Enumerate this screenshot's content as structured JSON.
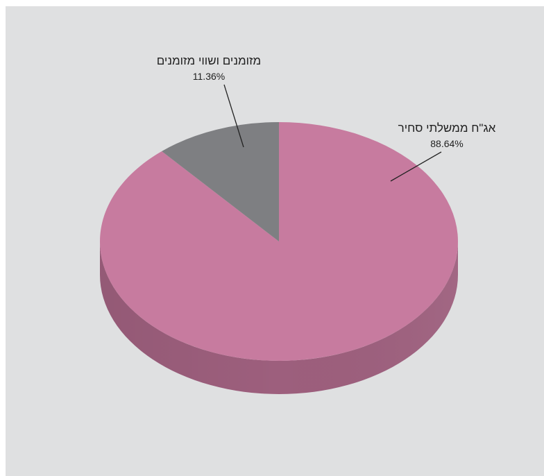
{
  "chart_data": {
    "type": "pie",
    "style": "3d",
    "slices": [
      {
        "name": "אג\"ח ממשלתי סחיר",
        "value": 88.64,
        "value_label": "88.64%",
        "color": "#c77b9f",
        "side_color": "#9d5f7d"
      },
      {
        "name": "מזומנים ושווי מזומנים",
        "value": 11.36,
        "value_label": "11.36%",
        "color": "#7e7f82",
        "side_color": "#5e5f62"
      }
    ],
    "legend": "none",
    "background": "#dfe0e1"
  }
}
